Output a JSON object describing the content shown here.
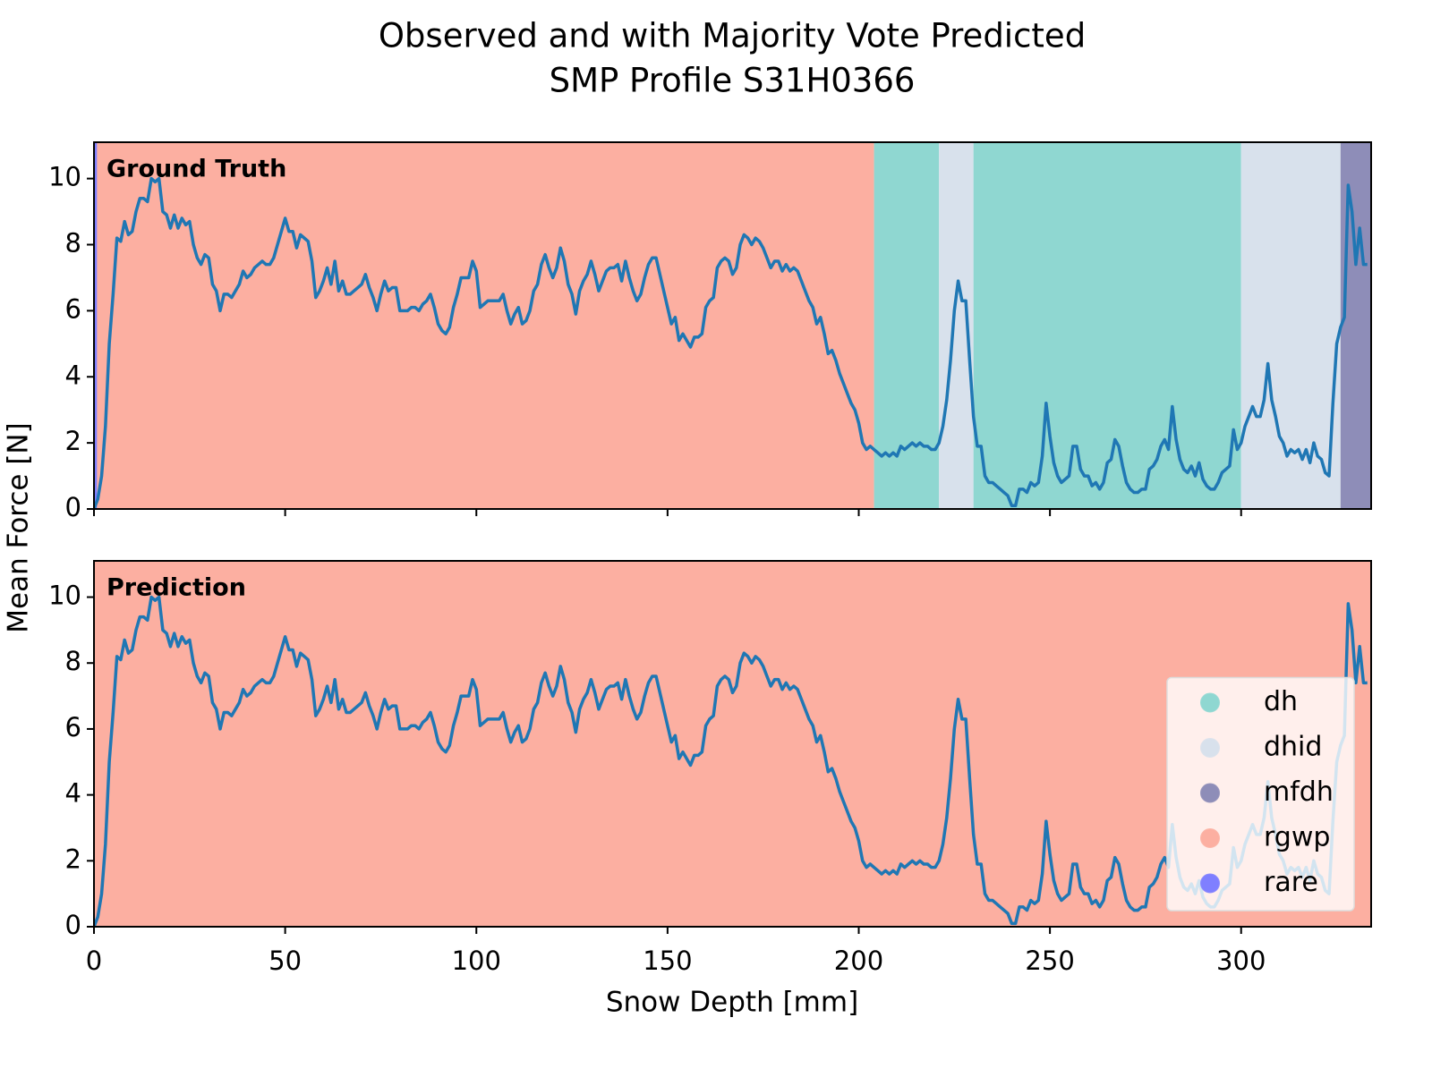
{
  "chart_data": {
    "type": "line",
    "title": "Observed and with Majority Vote Predicted",
    "subtitle": "SMP Profile S31H0366",
    "x_label": "Snow Depth [mm]",
    "y_label": "Mean Force [N]",
    "xlim": [
      0,
      334
    ],
    "ylim": [
      0,
      11.1
    ],
    "xticks": [
      0,
      50,
      100,
      150,
      200,
      250,
      300
    ],
    "yticks": [
      0,
      2,
      4,
      6,
      8,
      10
    ],
    "line_color": "#1f77b4",
    "legend_position": "lower right",
    "classes": [
      {
        "name": "dh",
        "color": "#8fd7d1"
      },
      {
        "name": "dhid",
        "color": "#d8e1ec"
      },
      {
        "name": "mfdh",
        "color": "#8e8db8"
      },
      {
        "name": "rgwp",
        "color": "#fcafa1"
      },
      {
        "name": "rare",
        "color": "#7f7fff"
      }
    ],
    "panels": [
      {
        "label": "Ground Truth",
        "bands": [
          {
            "class": 4,
            "start": 0,
            "end": 0.8
          },
          {
            "class": 3,
            "start": 0.8,
            "end": 204
          },
          {
            "class": 0,
            "start": 204,
            "end": 221
          },
          {
            "class": 1,
            "start": 221,
            "end": 230
          },
          {
            "class": 0,
            "start": 230,
            "end": 300
          },
          {
            "class": 1,
            "start": 300,
            "end": 326
          },
          {
            "class": 2,
            "start": 326,
            "end": 334
          }
        ]
      },
      {
        "label": "Prediction",
        "bands": [
          {
            "class": 3,
            "start": 0,
            "end": 334
          }
        ]
      }
    ],
    "x": [
      0,
      1,
      2,
      3,
      4,
      5,
      6,
      7,
      8,
      9,
      10,
      11,
      12,
      13,
      14,
      15,
      16,
      17,
      18,
      19,
      20,
      21,
      22,
      23,
      24,
      25,
      26,
      27,
      28,
      29,
      30,
      31,
      32,
      33,
      34,
      35,
      36,
      37,
      38,
      39,
      40,
      41,
      42,
      43,
      44,
      45,
      46,
      47,
      48,
      49,
      50,
      51,
      52,
      53,
      54,
      55,
      56,
      57,
      58,
      59,
      60,
      61,
      62,
      63,
      64,
      65,
      66,
      67,
      68,
      69,
      70,
      71,
      72,
      73,
      74,
      75,
      76,
      77,
      78,
      79,
      80,
      81,
      82,
      83,
      84,
      85,
      86,
      87,
      88,
      89,
      90,
      91,
      92,
      93,
      94,
      95,
      96,
      97,
      98,
      99,
      100,
      101,
      102,
      103,
      104,
      105,
      106,
      107,
      108,
      109,
      110,
      111,
      112,
      113,
      114,
      115,
      116,
      117,
      118,
      119,
      120,
      121,
      122,
      123,
      124,
      125,
      126,
      127,
      128,
      129,
      130,
      131,
      132,
      133,
      134,
      135,
      136,
      137,
      138,
      139,
      140,
      141,
      142,
      143,
      144,
      145,
      146,
      147,
      148,
      149,
      150,
      151,
      152,
      153,
      154,
      155,
      156,
      157,
      158,
      159,
      160,
      161,
      162,
      163,
      164,
      165,
      166,
      167,
      168,
      169,
      170,
      171,
      172,
      173,
      174,
      175,
      176,
      177,
      178,
      179,
      180,
      181,
      182,
      183,
      184,
      185,
      186,
      187,
      188,
      189,
      190,
      191,
      192,
      193,
      194,
      195,
      196,
      197,
      198,
      199,
      200,
      201,
      202,
      203,
      204,
      205,
      206,
      207,
      208,
      209,
      210,
      211,
      212,
      213,
      214,
      215,
      216,
      217,
      218,
      219,
      220,
      221,
      222,
      223,
      224,
      225,
      226,
      227,
      228,
      229,
      230,
      231,
      232,
      233,
      234,
      235,
      236,
      237,
      238,
      239,
      240,
      241,
      242,
      243,
      244,
      245,
      246,
      247,
      248,
      249,
      250,
      251,
      252,
      253,
      254,
      255,
      256,
      257,
      258,
      259,
      260,
      261,
      262,
      263,
      264,
      265,
      266,
      267,
      268,
      269,
      270,
      271,
      272,
      273,
      274,
      275,
      276,
      277,
      278,
      279,
      280,
      281,
      282,
      283,
      284,
      285,
      286,
      287,
      288,
      289,
      290,
      291,
      292,
      293,
      294,
      295,
      296,
      297,
      298,
      299,
      300,
      301,
      302,
      303,
      304,
      305,
      306,
      307,
      308,
      309,
      310,
      311,
      312,
      313,
      314,
      315,
      316,
      317,
      318,
      319,
      320,
      321,
      322,
      323,
      324,
      325,
      326,
      327,
      328,
      329,
      330,
      331,
      332,
      333
    ],
    "values": [
      0,
      0.3,
      1,
      2.5,
      5,
      6.5,
      8.2,
      8.1,
      8.7,
      8.3,
      8.4,
      9.0,
      9.4,
      9.4,
      9.3,
      10.0,
      9.9,
      10.0,
      9.0,
      8.9,
      8.5,
      8.9,
      8.5,
      8.8,
      8.6,
      8.7,
      8.0,
      7.6,
      7.4,
      7.7,
      7.6,
      6.8,
      6.6,
      6.0,
      6.5,
      6.5,
      6.4,
      6.6,
      6.8,
      7.2,
      7.0,
      7.1,
      7.3,
      7.4,
      7.5,
      7.4,
      7.4,
      7.6,
      8.0,
      8.4,
      8.8,
      8.4,
      8.4,
      7.9,
      8.3,
      8.2,
      8.1,
      7.5,
      6.4,
      6.6,
      6.9,
      7.3,
      6.8,
      7.5,
      6.6,
      6.9,
      6.5,
      6.5,
      6.6,
      6.7,
      6.8,
      7.1,
      6.7,
      6.4,
      6.0,
      6.5,
      6.9,
      6.6,
      6.7,
      6.7,
      6.0,
      6.0,
      6.0,
      6.1,
      6.1,
      6.0,
      6.2,
      6.3,
      6.5,
      6.1,
      5.6,
      5.4,
      5.3,
      5.5,
      6.1,
      6.5,
      7.0,
      7.0,
      7.0,
      7.5,
      7.2,
      6.1,
      6.2,
      6.3,
      6.3,
      6.3,
      6.3,
      6.5,
      6.0,
      5.6,
      5.9,
      6.1,
      5.6,
      5.7,
      6.0,
      6.6,
      6.8,
      7.4,
      7.7,
      7.3,
      7.0,
      7.3,
      7.9,
      7.5,
      6.8,
      6.5,
      5.9,
      6.6,
      6.9,
      7.1,
      7.5,
      7.1,
      6.6,
      6.9,
      7.2,
      7.3,
      7.3,
      7.4,
      6.9,
      7.5,
      7.0,
      6.6,
      6.3,
      6.5,
      7.0,
      7.4,
      7.6,
      7.6,
      7.1,
      6.6,
      6.1,
      5.6,
      5.8,
      5.1,
      5.3,
      5.1,
      4.9,
      5.2,
      5.2,
      5.3,
      6.1,
      6.3,
      6.4,
      7.3,
      7.5,
      7.6,
      7.5,
      7.1,
      7.3,
      8.0,
      8.3,
      8.2,
      8.0,
      8.2,
      8.1,
      7.9,
      7.6,
      7.3,
      7.5,
      7.5,
      7.2,
      7.4,
      7.2,
      7.3,
      7.2,
      6.9,
      6.6,
      6.3,
      6.1,
      5.6,
      5.8,
      5.3,
      4.7,
      4.8,
      4.5,
      4.1,
      3.8,
      3.5,
      3.2,
      3.0,
      2.6,
      2.0,
      1.8,
      1.9,
      1.8,
      1.7,
      1.6,
      1.7,
      1.6,
      1.7,
      1.6,
      1.9,
      1.8,
      1.9,
      2.0,
      1.9,
      2.0,
      1.9,
      1.9,
      1.8,
      1.8,
      2.0,
      2.5,
      3.3,
      4.5,
      6.0,
      6.9,
      6.3,
      6.3,
      4.5,
      2.8,
      1.9,
      1.9,
      1.0,
      0.8,
      0.8,
      0.7,
      0.6,
      0.5,
      0.4,
      0.1,
      0.1,
      0.6,
      0.6,
      0.5,
      0.8,
      0.7,
      0.8,
      1.6,
      3.2,
      2.2,
      1.4,
      1.0,
      0.8,
      0.9,
      1.0,
      1.9,
      1.9,
      1.2,
      1.0,
      1.0,
      0.7,
      0.8,
      0.6,
      0.8,
      1.4,
      1.5,
      2.1,
      1.9,
      1.3,
      0.8,
      0.6,
      0.5,
      0.5,
      0.6,
      0.6,
      1.2,
      1.3,
      1.5,
      1.9,
      2.1,
      1.8,
      3.1,
      2.1,
      1.5,
      1.2,
      1.1,
      1.3,
      1.0,
      1.4,
      0.9,
      0.7,
      0.6,
      0.6,
      0.8,
      1.1,
      1.2,
      1.3,
      2.4,
      1.8,
      2.0,
      2.5,
      2.8,
      3.1,
      2.8,
      2.8,
      3.3,
      4.4,
      3.3,
      2.8,
      2.2,
      2.0,
      1.6,
      1.8,
      1.7,
      1.8,
      1.5,
      1.8,
      1.4,
      2.0,
      1.6,
      1.5,
      1.1,
      1.0,
      3.2,
      5.0,
      5.5,
      5.8,
      9.8,
      9.0,
      7.4,
      8.5,
      7.4,
      7.4
    ]
  }
}
